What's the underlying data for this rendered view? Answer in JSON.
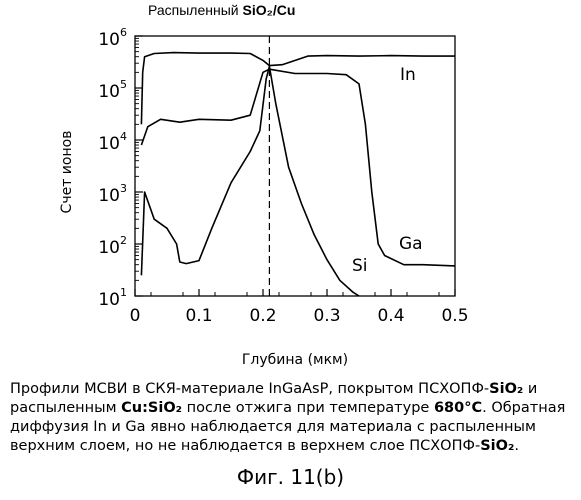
{
  "chart_data": {
    "type": "line",
    "title": "Распыленный SiO₂/Cu",
    "title_prefix": "Распыленный ",
    "title_bold": "SiO₂/Cu",
    "xlabel": "Глубина (мкм)",
    "ylabel": "Счет ионов",
    "xlim": [
      0,
      0.5
    ],
    "ylim": [
      10,
      1000000
    ],
    "yscale": "log",
    "grid": false,
    "x_ticks": [
      0,
      0.1,
      0.2,
      0.3,
      0.4,
      0.5
    ],
    "x_tick_labels": [
      "0",
      "0.1",
      "0.2",
      "0.3",
      "0.4",
      "0.5"
    ],
    "y_tick_labels": [
      {
        "base": "10",
        "exp": "1",
        "value": 10
      },
      {
        "base": "10",
        "exp": "2",
        "value": 100
      },
      {
        "base": "10",
        "exp": "3",
        "value": 1000
      },
      {
        "base": "10",
        "exp": "4",
        "value": 10000
      },
      {
        "base": "10",
        "exp": "5",
        "value": 100000
      },
      {
        "base": "10",
        "exp": "6",
        "value": 1000000
      }
    ],
    "marker_line_x": 0.21,
    "series": [
      {
        "name": "In",
        "points": [
          [
            0.01,
            20000
          ],
          [
            0.012,
            200000
          ],
          [
            0.015,
            400000
          ],
          [
            0.03,
            460000
          ],
          [
            0.06,
            480000
          ],
          [
            0.1,
            470000
          ],
          [
            0.15,
            470000
          ],
          [
            0.18,
            460000
          ],
          [
            0.2,
            340000
          ],
          [
            0.21,
            270000
          ],
          [
            0.23,
            280000
          ],
          [
            0.27,
            410000
          ],
          [
            0.3,
            420000
          ],
          [
            0.35,
            410000
          ],
          [
            0.4,
            420000
          ],
          [
            0.45,
            410000
          ],
          [
            0.5,
            410000
          ]
        ]
      },
      {
        "name": "Ga",
        "points": [
          [
            0.01,
            8000
          ],
          [
            0.02,
            18000
          ],
          [
            0.04,
            25000
          ],
          [
            0.07,
            22000
          ],
          [
            0.1,
            25000
          ],
          [
            0.15,
            24000
          ],
          [
            0.18,
            30000
          ],
          [
            0.2,
            200000
          ],
          [
            0.21,
            230000
          ],
          [
            0.25,
            190000
          ],
          [
            0.3,
            190000
          ],
          [
            0.33,
            180000
          ],
          [
            0.35,
            120000
          ],
          [
            0.36,
            20000
          ],
          [
            0.37,
            1000
          ],
          [
            0.38,
            100
          ],
          [
            0.39,
            60
          ],
          [
            0.42,
            40
          ],
          [
            0.45,
            40
          ],
          [
            0.5,
            38
          ]
        ]
      },
      {
        "name": "Si",
        "points": [
          [
            0.01,
            25
          ],
          [
            0.015,
            1000
          ],
          [
            0.03,
            300
          ],
          [
            0.05,
            200
          ],
          [
            0.065,
            100
          ],
          [
            0.07,
            45
          ],
          [
            0.08,
            42
          ],
          [
            0.1,
            48
          ],
          [
            0.12,
            200
          ],
          [
            0.15,
            1500
          ],
          [
            0.18,
            6000
          ],
          [
            0.195,
            15000
          ],
          [
            0.205,
            150000
          ],
          [
            0.21,
            260000
          ],
          [
            0.22,
            50000
          ],
          [
            0.24,
            3000
          ],
          [
            0.26,
            600
          ],
          [
            0.28,
            150
          ],
          [
            0.3,
            50
          ],
          [
            0.32,
            20
          ],
          [
            0.34,
            12
          ],
          [
            0.35,
            10
          ]
        ]
      }
    ],
    "curve_labels": [
      "In",
      "Ga",
      "Si"
    ]
  },
  "caption": {
    "l1_a": "Профили МСВИ в СКЯ-материале InGaAsP, покрытом ПСХОПФ-",
    "l1_b": "SiO₂",
    "l1_c": " и",
    "l2_a": "распыленным ",
    "l2_b": "Cu:SiO₂",
    "l2_c": " после отжига при температуре ",
    "l2_d": "680°C",
    "l2_e": ". Обратная",
    "l3": "диффузия In и Ga явно наблюдается для материала с распыленным",
    "l4_a": "верхним слоем, но не наблюдается в верхнем слое ПСХОПФ-",
    "l4_b": "SiO₂",
    "l4_c": "."
  },
  "figure_label": "Фиг. 11(b)"
}
